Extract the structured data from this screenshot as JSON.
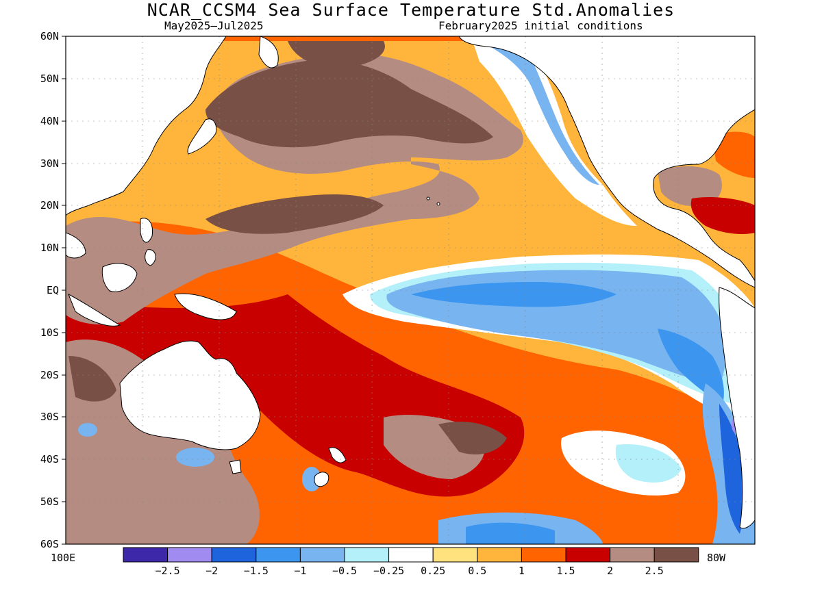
{
  "title": "NCAR_CCSM4 Sea Surface Temperature Std.Anomalies",
  "subtitle_left": "May2025–Jul2025",
  "subtitle_right": "February2025 initial conditions",
  "axis": {
    "lat_labels": [
      "60N",
      "50N",
      "40N",
      "30N",
      "20N",
      "10N",
      "EQ",
      "10S",
      "20S",
      "30S",
      "40S",
      "50S",
      "60S"
    ],
    "lon_left": "100E",
    "lon_right": "80W"
  },
  "colorbar": {
    "colors": [
      "#3c28a8",
      "#a08cf0",
      "#1e64dc",
      "#3c96f0",
      "#78b4f0",
      "#b4f0fa",
      "#ffffff",
      "#ffe17d",
      "#ffb43c",
      "#ff6400",
      "#c80000",
      "#b48c82",
      "#785046"
    ],
    "tick_labels": [
      "-2.5",
      "-2",
      "-1.5",
      "-1",
      "-0.5",
      "-0.25",
      "0.25",
      "0.5",
      "1",
      "1.5",
      "2",
      "2.5"
    ]
  },
  "palette": {
    "deep_brown": "#785046",
    "light_brown": "#b48c82",
    "dark_red": "#c80000",
    "orange_red": "#ff6400",
    "orange": "#ffb43c",
    "yellow": "#ffe17d",
    "white": "#ffffff",
    "pale_cyan": "#b4f0fa",
    "light_blue": "#78b4f0",
    "mid_blue": "#3c96f0",
    "blue": "#1e64dc",
    "lavender": "#a08cf0"
  }
}
